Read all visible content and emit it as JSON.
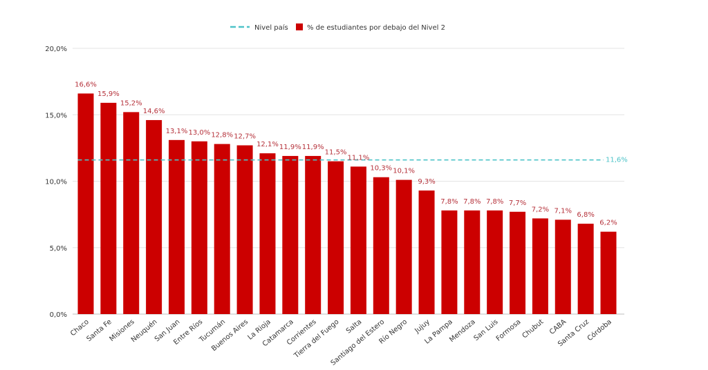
{
  "chart_data": {
    "type": "bar",
    "categories": [
      "Chaco",
      "Santa Fe",
      "Misiones",
      "Neuquén",
      "San Juan",
      "Entre Ríos",
      "Tucumán",
      "Buenos Aires",
      "La Rioja",
      "Catamarca",
      "Corrientes",
      "Tierra del Fuego",
      "Salta",
      "Santiago del Estero",
      "Río Negro",
      "Jujuy",
      "La Pampa",
      "Mendoza",
      "San Luis",
      "Formosa",
      "Chubut",
      "CABA",
      "Santa Cruz",
      "Córdoba"
    ],
    "series": [
      {
        "name": "% de estudiantes por debajo del Nivel 2",
        "values": [
          16.6,
          15.9,
          15.2,
          14.6,
          13.1,
          13.0,
          12.8,
          12.7,
          12.1,
          11.9,
          11.9,
          11.5,
          11.1,
          10.3,
          10.1,
          9.3,
          7.8,
          7.8,
          7.8,
          7.7,
          7.2,
          7.1,
          6.8,
          6.2
        ],
        "value_labels": [
          "16,6%",
          "15,9%",
          "15,2%",
          "14,6%",
          "13,1%",
          "13,0%",
          "12,8%",
          "12,7%",
          "12,1%",
          "11,9%",
          "11,9%",
          "11,5%",
          "11,1%",
          "10,3%",
          "10,1%",
          "9,3%",
          "7,8%",
          "7,8%",
          "7,8%",
          "7,7%",
          "7,2%",
          "7,1%",
          "6,8%",
          "6,2%"
        ],
        "color": "#cc0000"
      }
    ],
    "reference_line": {
      "name": "Nivel país",
      "value": 11.6,
      "label": "11,6%",
      "color": "#4dc3c8",
      "style": "dashed"
    },
    "ylim": [
      0,
      20
    ],
    "yticks": [
      0,
      5,
      10,
      15,
      20
    ],
    "ytick_labels": [
      "0,0%",
      "5,0%",
      "10,0%",
      "15,0%",
      "20,0%"
    ],
    "title": "",
    "xlabel": "",
    "ylabel": "",
    "grid": true,
    "legend_position": "top-center",
    "data_label_color": "#b5313a"
  }
}
